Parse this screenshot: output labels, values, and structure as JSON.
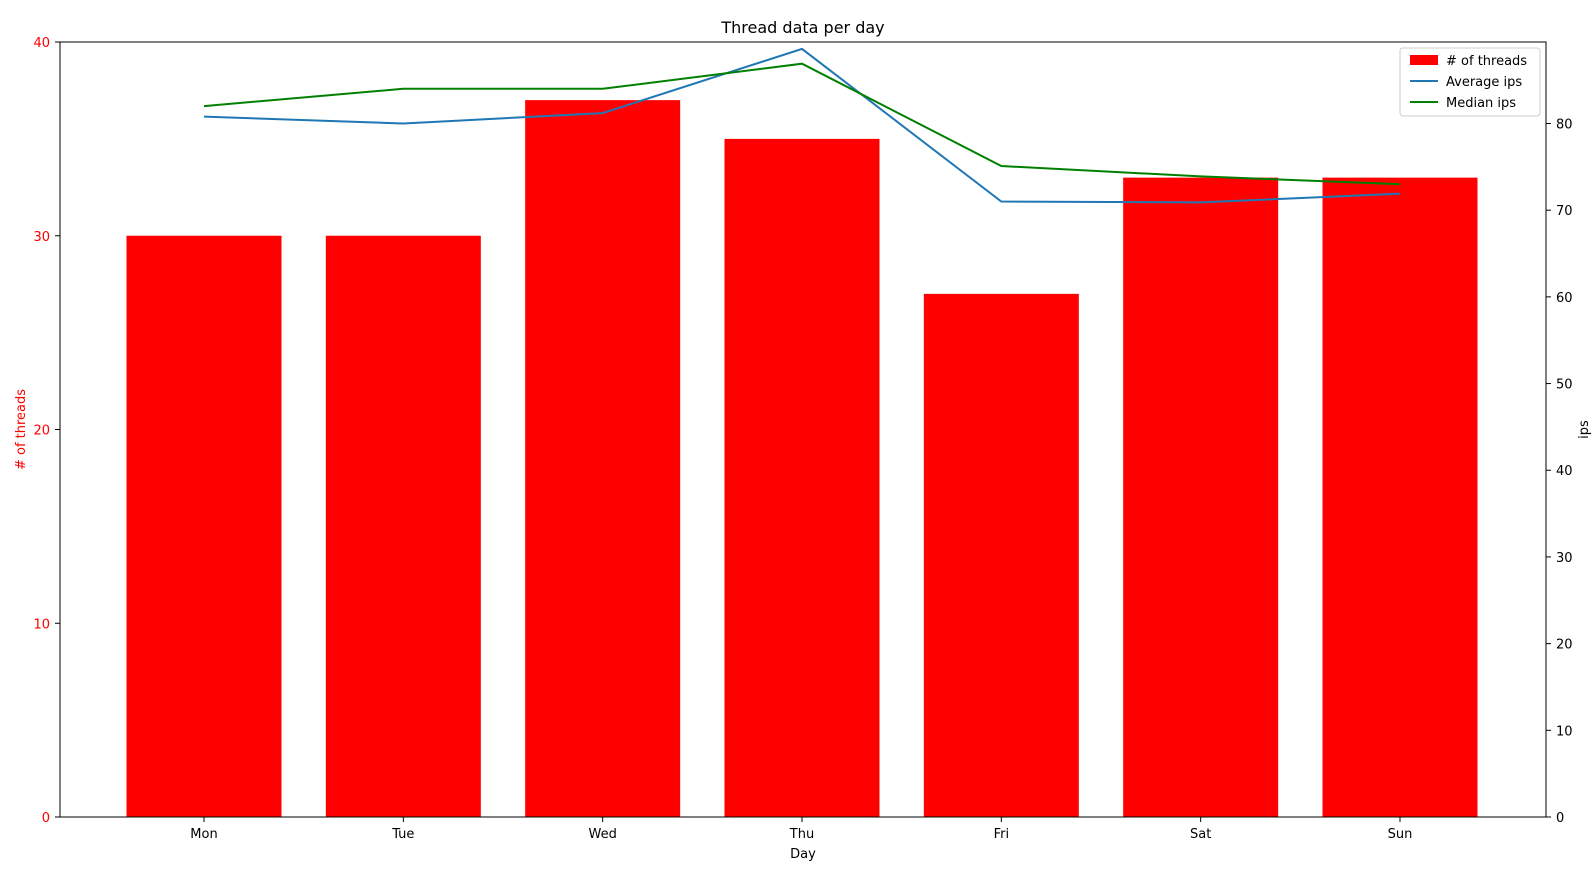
{
  "chart_data": {
    "type": "bar",
    "title": "Thread data per day",
    "xlabel": "Day",
    "ylabel": "# of threads",
    "y2label": "ips",
    "categories": [
      "Mon",
      "Tue",
      "Wed",
      "Thu",
      "Fri",
      "Sat",
      "Sun"
    ],
    "ylim": [
      0,
      40
    ],
    "y2lim": [
      0,
      89.4
    ],
    "yticks": [
      0,
      10,
      20,
      30,
      40
    ],
    "y2ticks": [
      0,
      10,
      20,
      30,
      40,
      50,
      60,
      70,
      80
    ],
    "grid": false,
    "legend_position": "top-right",
    "series": [
      {
        "name": "# of threads",
        "type": "bar",
        "axis": "left",
        "color": "#ff0000",
        "values": [
          30,
          30,
          37,
          35,
          27,
          33,
          33
        ]
      },
      {
        "name": "Average ips",
        "type": "line",
        "axis": "right",
        "color": "#1f77b4",
        "values": [
          80.8,
          80.0,
          81.2,
          88.6,
          71.0,
          70.9,
          71.9
        ]
      },
      {
        "name": "Median ips",
        "type": "line",
        "axis": "right",
        "color": "#008000",
        "values": [
          82.0,
          84.0,
          84.0,
          86.9,
          75.1,
          73.9,
          73.0
        ]
      }
    ],
    "colors": {
      "left_axis": "#ff0000",
      "axis": "#000000"
    }
  }
}
